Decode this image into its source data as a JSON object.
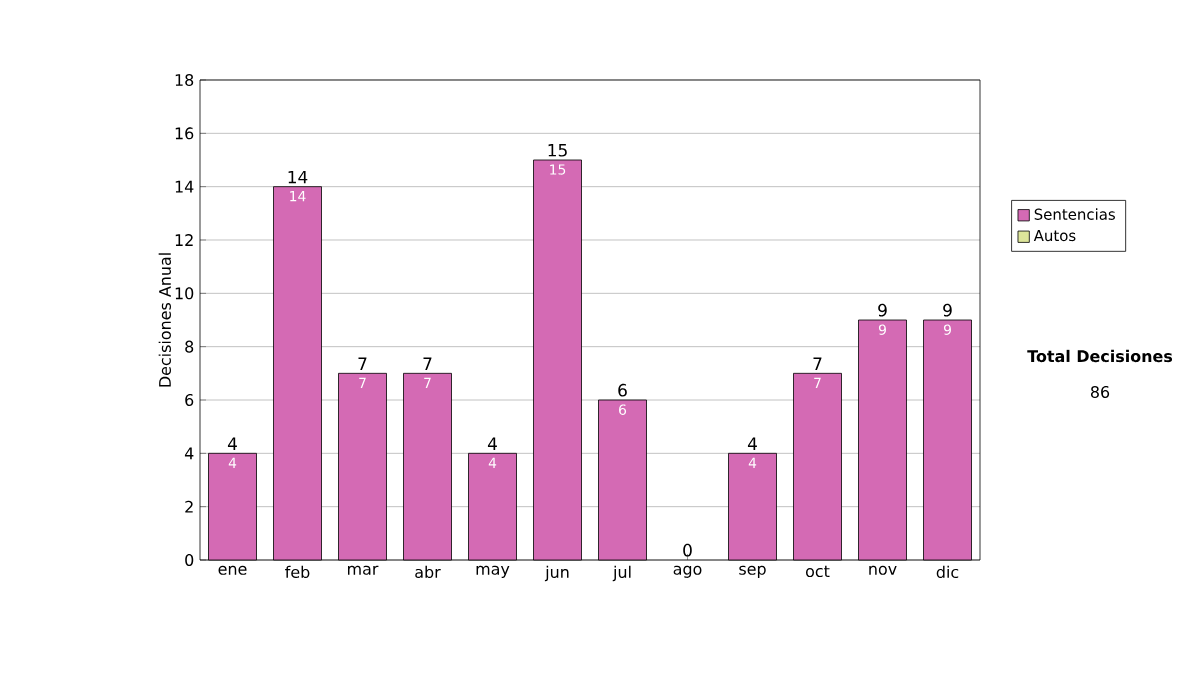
{
  "chart_data": {
    "type": "bar",
    "ylabel": "Decisiones Anual",
    "categories": [
      "ene",
      "feb",
      "mar",
      "abr",
      "may",
      "jun",
      "jul",
      "ago",
      "sep",
      "oct",
      "nov",
      "dic"
    ],
    "series": [
      {
        "name": "Sentencias",
        "color": "#d46ab4",
        "values": [
          4,
          14,
          7,
          7,
          4,
          15,
          6,
          0,
          4,
          7,
          9,
          9
        ],
        "value_labels": [
          "4",
          "14",
          "7",
          "7",
          "4",
          "15",
          "6",
          null,
          "4",
          "7",
          "9",
          "9"
        ]
      },
      {
        "name": "Autos",
        "color": "#dde59a",
        "values": [
          0,
          0,
          0,
          0,
          0,
          0,
          0,
          0,
          0,
          0,
          0,
          0
        ]
      }
    ],
    "stacked": true,
    "totals": [
      "4",
      "14",
      "7",
      "7",
      "4",
      "15",
      "6",
      "0",
      "4",
      "7",
      "9",
      "9"
    ],
    "ylim": [
      0,
      18
    ],
    "yticks": [
      0,
      2,
      4,
      6,
      8,
      10,
      12,
      14,
      16,
      18
    ],
    "grid": "y",
    "legend": "right",
    "annotations": [
      "Total Decisiones",
      "86"
    ]
  }
}
